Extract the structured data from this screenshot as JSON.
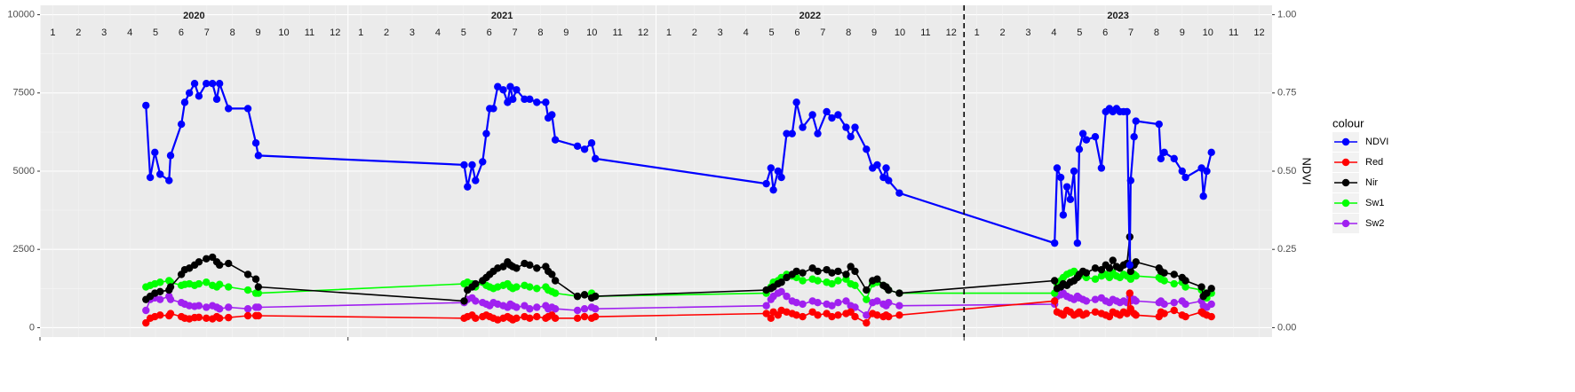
{
  "chart_data": {
    "type": "line",
    "years": [
      2020,
      2021,
      2022,
      2023
    ],
    "months": [
      "1",
      "2",
      "3",
      "4",
      "5",
      "6",
      "7",
      "8",
      "9",
      "10",
      "11",
      "12"
    ],
    "vline": 2023,
    "xlim": [
      2020,
      2024
    ],
    "ylim": [
      -300,
      10300
    ],
    "yticks": [
      0,
      2500,
      5000,
      7500,
      10000
    ],
    "y2lim": [
      -0.03,
      1.03
    ],
    "y2ticks": [
      {
        "value": 0,
        "label": "0.00"
      },
      {
        "value": 0.25,
        "label": "0.25"
      },
      {
        "value": 0.5,
        "label": "0.50"
      },
      {
        "value": 0.75,
        "label": "0.75"
      },
      {
        "value": 1,
        "label": "1.00"
      }
    ],
    "y2_label": "NDVI",
    "legend_title": "colour",
    "legend_position": "right",
    "grid": true,
    "x": [
      2020.344,
      2020.358,
      2020.373,
      2020.39,
      2020.419,
      2020.424,
      2020.459,
      2020.47,
      2020.485,
      2020.502,
      2020.516,
      2020.54,
      2020.56,
      2020.574,
      2020.583,
      2020.612,
      2020.675,
      2020.701,
      2020.709,
      2021.377,
      2021.388,
      2021.403,
      2021.414,
      2021.437,
      2021.449,
      2021.46,
      2021.472,
      2021.486,
      2021.504,
      2021.518,
      2021.527,
      2021.535,
      2021.547,
      2021.573,
      2021.59,
      2021.613,
      2021.642,
      2021.65,
      2021.662,
      2021.673,
      2021.745,
      2021.768,
      2021.791,
      2021.803,
      2022.358,
      2022.373,
      2022.381,
      2022.396,
      2022.407,
      2022.424,
      2022.442,
      2022.456,
      2022.476,
      2022.508,
      2022.525,
      2022.554,
      2022.571,
      2022.591,
      2022.617,
      2022.632,
      2022.646,
      2022.683,
      2022.703,
      2022.718,
      2022.738,
      2022.747,
      2022.755,
      2022.79,
      2023.294,
      2023.302,
      2023.314,
      2023.322,
      2023.334,
      2023.345,
      2023.357,
      2023.368,
      2023.374,
      2023.386,
      2023.397,
      2023.426,
      2023.446,
      2023.46,
      2023.472,
      2023.483,
      2023.495,
      2023.506,
      2023.518,
      2023.529,
      2023.538,
      2023.541,
      2023.552,
      2023.558,
      2023.633,
      2023.639,
      2023.65,
      2023.682,
      2023.708,
      2023.719,
      2023.771,
      2023.777,
      2023.788,
      2023.803
    ],
    "series": [
      {
        "name": "NDVI",
        "color": "#0000ff",
        "axis": "y2",
        "values": [
          0.71,
          0.48,
          0.56,
          0.49,
          0.47,
          0.55,
          0.65,
          0.72,
          0.75,
          0.78,
          0.74,
          0.78,
          0.78,
          0.73,
          0.78,
          0.7,
          0.7,
          0.59,
          0.55,
          0.52,
          0.45,
          0.52,
          0.47,
          0.53,
          0.62,
          0.7,
          0.7,
          0.77,
          0.76,
          0.72,
          0.77,
          0.73,
          0.76,
          0.73,
          0.73,
          0.72,
          0.72,
          0.67,
          0.68,
          0.6,
          0.58,
          0.57,
          0.59,
          0.54,
          0.46,
          0.51,
          0.44,
          0.5,
          0.48,
          0.62,
          0.62,
          0.72,
          0.64,
          0.68,
          0.62,
          0.69,
          0.67,
          0.68,
          0.64,
          0.61,
          0.64,
          0.57,
          0.51,
          0.52,
          0.48,
          0.51,
          0.47,
          0.43,
          0.27,
          0.51,
          0.48,
          0.36,
          0.45,
          0.41,
          0.5,
          0.27,
          0.57,
          0.62,
          0.6,
          0.61,
          0.51,
          0.69,
          0.7,
          0.69,
          0.7,
          0.69,
          0.69,
          0.69,
          0.2,
          0.47,
          0.61,
          0.66,
          0.65,
          0.54,
          0.56,
          0.54,
          0.5,
          0.48,
          0.51,
          0.42,
          0.5,
          0.56
        ]
      },
      {
        "name": "Red",
        "color": "#ff0000",
        "values": [
          150,
          300,
          350,
          400,
          380,
          450,
          350,
          300,
          280,
          320,
          330,
          300,
          280,
          350,
          300,
          320,
          380,
          380,
          380,
          300,
          350,
          400,
          300,
          350,
          400,
          350,
          300,
          250,
          300,
          350,
          300,
          250,
          300,
          350,
          300,
          350,
          300,
          350,
          400,
          300,
          300,
          350,
          300,
          350,
          450,
          300,
          500,
          400,
          550,
          500,
          450,
          400,
          350,
          500,
          400,
          450,
          350,
          400,
          450,
          500,
          350,
          150,
          450,
          400,
          350,
          400,
          350,
          400,
          850,
          500,
          450,
          400,
          550,
          500,
          400,
          450,
          500,
          400,
          450,
          500,
          450,
          400,
          350,
          500,
          450,
          400,
          500,
          450,
          1100,
          600,
          450,
          400,
          350,
          500,
          450,
          550,
          400,
          350,
          500,
          450,
          400,
          350
        ]
      },
      {
        "name": "Nir",
        "color": "#000000",
        "values": [
          900,
          1000,
          1100,
          1150,
          1200,
          1300,
          1700,
          1850,
          1900,
          2000,
          2100,
          2200,
          2250,
          2100,
          2000,
          2050,
          1700,
          1550,
          1300,
          850,
          1200,
          1300,
          1400,
          1500,
          1600,
          1700,
          1800,
          1900,
          1950,
          2100,
          2000,
          1950,
          1900,
          2050,
          2000,
          1900,
          1950,
          1800,
          1700,
          1500,
          1000,
          1050,
          950,
          1000,
          1200,
          1250,
          1300,
          1400,
          1450,
          1600,
          1700,
          1800,
          1750,
          1900,
          1800,
          1850,
          1750,
          1800,
          1700,
          1950,
          1800,
          1200,
          1500,
          1550,
          1350,
          1300,
          1200,
          1100,
          1500,
          1250,
          1300,
          1400,
          1350,
          1450,
          1500,
          1600,
          1700,
          1800,
          1750,
          1900,
          1850,
          2000,
          1900,
          2150,
          1950,
          1900,
          2000,
          2050,
          2900,
          1800,
          2000,
          2100,
          1900,
          1800,
          1750,
          1700,
          1600,
          1500,
          1300,
          1000,
          1100,
          1250
        ]
      },
      {
        "name": "Sw1",
        "color": "#00ff00",
        "values": [
          1300,
          1350,
          1400,
          1450,
          1500,
          1450,
          1350,
          1380,
          1400,
          1350,
          1400,
          1450,
          1350,
          1300,
          1380,
          1300,
          1200,
          1100,
          1100,
          1400,
          1450,
          1400,
          1300,
          1450,
          1350,
          1300,
          1250,
          1300,
          1350,
          1400,
          1300,
          1250,
          1300,
          1350,
          1300,
          1250,
          1300,
          1200,
          1150,
          1100,
          1000,
          1050,
          1100,
          1000,
          1100,
          1300,
          1450,
          1500,
          1600,
          1700,
          1650,
          1600,
          1500,
          1550,
          1500,
          1450,
          1400,
          1500,
          1550,
          1400,
          1350,
          900,
          1400,
          1450,
          1350,
          1300,
          1200,
          1100,
          1100,
          1400,
          1500,
          1600,
          1700,
          1750,
          1800,
          1700,
          1650,
          1700,
          1600,
          1550,
          1650,
          1700,
          1600,
          1750,
          1650,
          1600,
          1700,
          1650,
          1600,
          1550,
          1700,
          1650,
          1600,
          1550,
          1500,
          1400,
          1450,
          1300,
          1200,
          1000,
          950,
          1100
        ]
      },
      {
        "name": "Sw2",
        "color": "#a020f0",
        "values": [
          550,
          900,
          950,
          900,
          1000,
          900,
          800,
          750,
          700,
          680,
          700,
          650,
          700,
          650,
          600,
          650,
          600,
          650,
          650,
          800,
          900,
          950,
          850,
          800,
          750,
          700,
          800,
          750,
          700,
          650,
          750,
          700,
          650,
          700,
          600,
          650,
          700,
          600,
          650,
          600,
          550,
          600,
          650,
          600,
          700,
          900,
          1000,
          1100,
          1150,
          1000,
          850,
          800,
          750,
          850,
          800,
          750,
          700,
          800,
          850,
          700,
          650,
          400,
          800,
          850,
          750,
          700,
          800,
          700,
          750,
          1000,
          1050,
          1100,
          1000,
          950,
          900,
          1000,
          950,
          900,
          850,
          900,
          950,
          850,
          800,
          900,
          850,
          800,
          850,
          800,
          1000,
          850,
          900,
          850,
          800,
          850,
          750,
          800,
          850,
          750,
          850,
          700,
          650,
          750
        ]
      }
    ]
  }
}
